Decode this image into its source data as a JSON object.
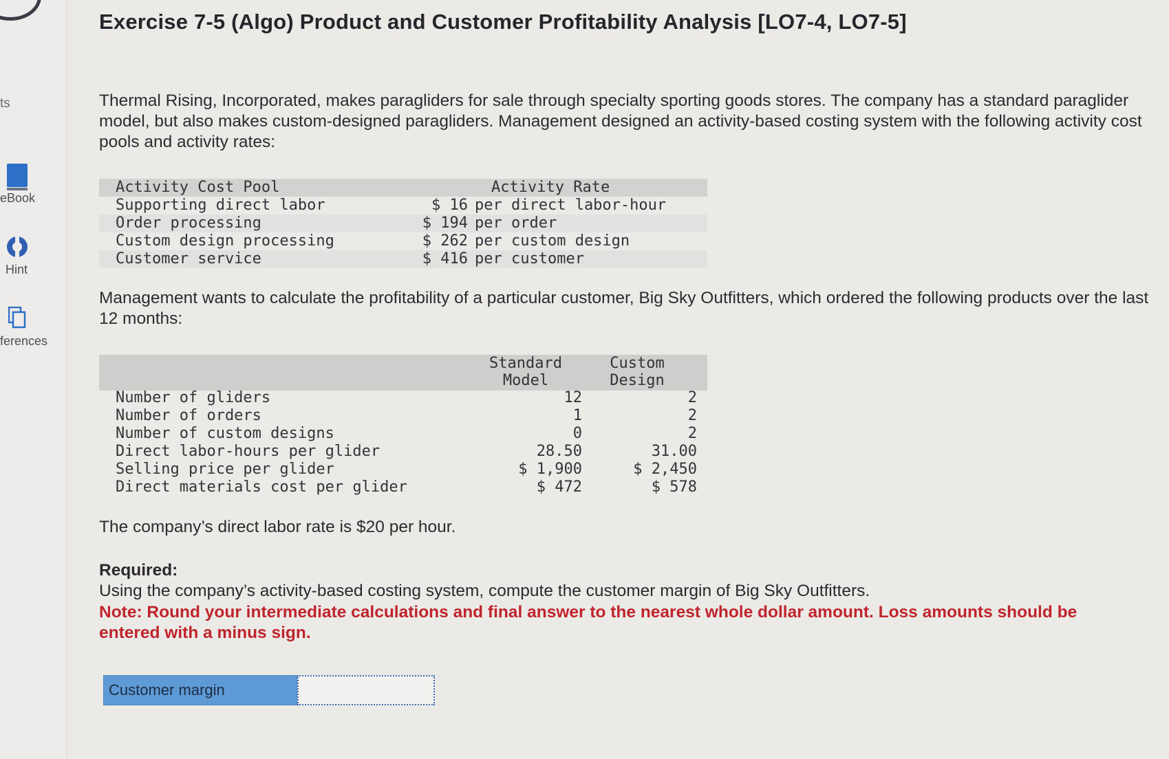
{
  "sidebar": {
    "cut_label": "ts",
    "items": [
      {
        "label": "eBook"
      },
      {
        "label": "Hint"
      },
      {
        "label": "ferences"
      }
    ]
  },
  "title": "Exercise 7-5 (Algo) Product and Customer Profitability Analysis [LO7-4, LO7-5]",
  "intro": "Thermal Rising, Incorporated, makes paragliders for sale through specialty sporting goods stores. The company has a standard paraglider model, but also makes custom-designed paragliders. Management designed an activity-based costing system with the following activity cost pools and activity rates:",
  "activity_table": {
    "header_pool": "Activity Cost Pool",
    "header_rate": "Activity Rate",
    "rows": [
      {
        "pool": "Supporting direct labor",
        "rate": "$ 16",
        "unit": "per direct labor-hour"
      },
      {
        "pool": "Order processing",
        "rate": "$ 194",
        "unit": "per order"
      },
      {
        "pool": "Custom design processing",
        "rate": "$ 262",
        "unit": "per custom design"
      },
      {
        "pool": "Customer service",
        "rate": "$ 416",
        "unit": "per customer"
      }
    ]
  },
  "management_text": "Management wants to calculate the profitability of a particular customer, Big Sky Outfitters, which ordered the following products over the last 12 months:",
  "product_table": {
    "header_std_line1": "Standard",
    "header_std_line2": "Model",
    "header_cus_line1": "Custom",
    "header_cus_line2": "Design",
    "rows": [
      {
        "label": "Number of gliders",
        "std": "12",
        "cus": "2"
      },
      {
        "label": "Number of orders",
        "std": "1",
        "cus": "2"
      },
      {
        "label": "Number of custom designs",
        "std": "0",
        "cus": "2"
      },
      {
        "label": "Direct labor-hours per glider",
        "std": "28.50",
        "cus": "31.00"
      },
      {
        "label": "Selling price per glider",
        "std": "$ 1,900",
        "cus": "$ 2,450"
      },
      {
        "label": "Direct materials cost per glider",
        "std": "$ 472",
        "cus": "$ 578"
      }
    ]
  },
  "labor_rate_text": "The company’s direct labor rate is $20 per hour.",
  "required_label": "Required:",
  "required_text": "Using the company’s activity-based costing system, compute the customer margin of Big Sky Outfitters.",
  "note": "Note: Round your intermediate calculations and final answer to the nearest whole dollar amount. Loss amounts should be entered with a minus sign.",
  "answer": {
    "label": "Customer margin",
    "value": ""
  }
}
